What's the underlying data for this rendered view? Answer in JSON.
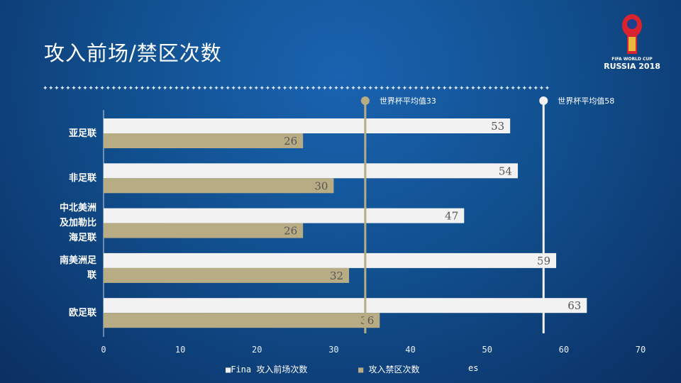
{
  "title": "攻入前场/禁区次数",
  "logo": {
    "line1": "FIFA WORLD CUP",
    "line2": "RUSSIA 2018"
  },
  "chart_data": {
    "type": "bar",
    "orientation": "horizontal",
    "categories": [
      "亚足联",
      "非足联",
      "中北美洲及加勒比海足联",
      "南美洲足联",
      "欧足联"
    ],
    "category_lines": [
      [
        "亚足联"
      ],
      [
        "非足联"
      ],
      [
        "中北美洲",
        "及加勒比",
        "海足联"
      ],
      [
        "南美洲足",
        "联"
      ],
      [
        "欧足联"
      ]
    ],
    "series": [
      {
        "name": "攻入前场次数",
        "color": "#f2f2f2",
        "values": [
          53,
          54,
          47,
          59,
          63
        ]
      },
      {
        "name": "攻入禁区次数",
        "color": "#b8ac84",
        "values": [
          26,
          30,
          26,
          32,
          36
        ]
      }
    ],
    "xlim": [
      0,
      70
    ],
    "xticks": [
      0,
      10,
      20,
      30,
      40,
      50,
      60,
      70
    ],
    "reference_lines": [
      {
        "label": "世界杯平均值33",
        "value": 33,
        "color": "#b8ac84"
      },
      {
        "label": "世界杯平均值58",
        "value": 58,
        "color": "#f2f2f2"
      }
    ],
    "legend": {
      "placement": "bottom",
      "prefix": "Fina",
      "suffix": "es"
    }
  }
}
